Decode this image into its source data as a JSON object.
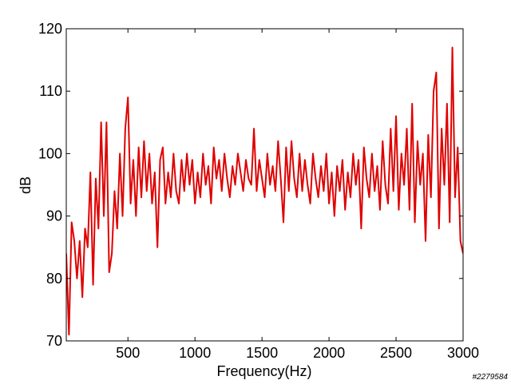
{
  "chart_data": {
    "type": "line",
    "x_label": "Frequency(Hz)",
    "y_label": "dB",
    "watermark": "#2279584",
    "color": "#e00000",
    "xlim": [
      40,
      3000
    ],
    "xticks": [
      500,
      1000,
      1500,
      2000,
      2500,
      3000
    ],
    "ylim": [
      70,
      120
    ],
    "yticks": [
      70,
      80,
      90,
      100,
      110,
      120
    ],
    "x": [
      40,
      60,
      80,
      100,
      120,
      140,
      160,
      180,
      200,
      220,
      240,
      260,
      280,
      300,
      320,
      340,
      360,
      380,
      400,
      420,
      440,
      460,
      480,
      500,
      520,
      540,
      560,
      580,
      600,
      620,
      640,
      660,
      680,
      700,
      720,
      740,
      760,
      780,
      800,
      820,
      840,
      860,
      880,
      900,
      920,
      940,
      960,
      980,
      1000,
      1020,
      1040,
      1060,
      1080,
      1100,
      1120,
      1140,
      1160,
      1180,
      1200,
      1220,
      1240,
      1260,
      1280,
      1300,
      1320,
      1340,
      1360,
      1380,
      1400,
      1420,
      1440,
      1460,
      1480,
      1500,
      1520,
      1540,
      1560,
      1580,
      1600,
      1620,
      1640,
      1660,
      1680,
      1700,
      1720,
      1740,
      1760,
      1780,
      1800,
      1820,
      1840,
      1860,
      1880,
      1900,
      1920,
      1940,
      1960,
      1980,
      2000,
      2020,
      2040,
      2060,
      2080,
      2100,
      2120,
      2140,
      2160,
      2180,
      2200,
      2220,
      2240,
      2260,
      2280,
      2300,
      2320,
      2340,
      2360,
      2380,
      2400,
      2420,
      2440,
      2460,
      2480,
      2500,
      2520,
      2540,
      2560,
      2580,
      2600,
      2620,
      2640,
      2660,
      2680,
      2700,
      2720,
      2740,
      2760,
      2780,
      2800,
      2820,
      2840,
      2860,
      2880,
      2900,
      2920,
      2940,
      2960,
      2980,
      3000
    ],
    "values": [
      84,
      71,
      89,
      86,
      80,
      86,
      77,
      88,
      85,
      97,
      79,
      96,
      88,
      105,
      90,
      105,
      81,
      84,
      94,
      88,
      100,
      90,
      104,
      109,
      92,
      99,
      90,
      101,
      93,
      102,
      94,
      100,
      92,
      97,
      85,
      99,
      101,
      92,
      97,
      93,
      100,
      94,
      92,
      99,
      94,
      100,
      95,
      99,
      92,
      97,
      93,
      100,
      95,
      98,
      92,
      101,
      96,
      99,
      94,
      100,
      96,
      93,
      98,
      95,
      100,
      97,
      94,
      99,
      96,
      95,
      104,
      94,
      99,
      96,
      93,
      100,
      95,
      98,
      94,
      102,
      96,
      89,
      101,
      94,
      102,
      96,
      93,
      100,
      94,
      99,
      95,
      92,
      100,
      96,
      93,
      98,
      94,
      100,
      92,
      97,
      90,
      98,
      94,
      99,
      91,
      97,
      93,
      100,
      95,
      99,
      88,
      101,
      96,
      93,
      100,
      94,
      98,
      91,
      102,
      95,
      92,
      104,
      94,
      106,
      91,
      100,
      95,
      104,
      91,
      108,
      89,
      102,
      95,
      100,
      86,
      103,
      93,
      110,
      113,
      88,
      104,
      95,
      108,
      89,
      117,
      93,
      101,
      86,
      84
    ]
  }
}
